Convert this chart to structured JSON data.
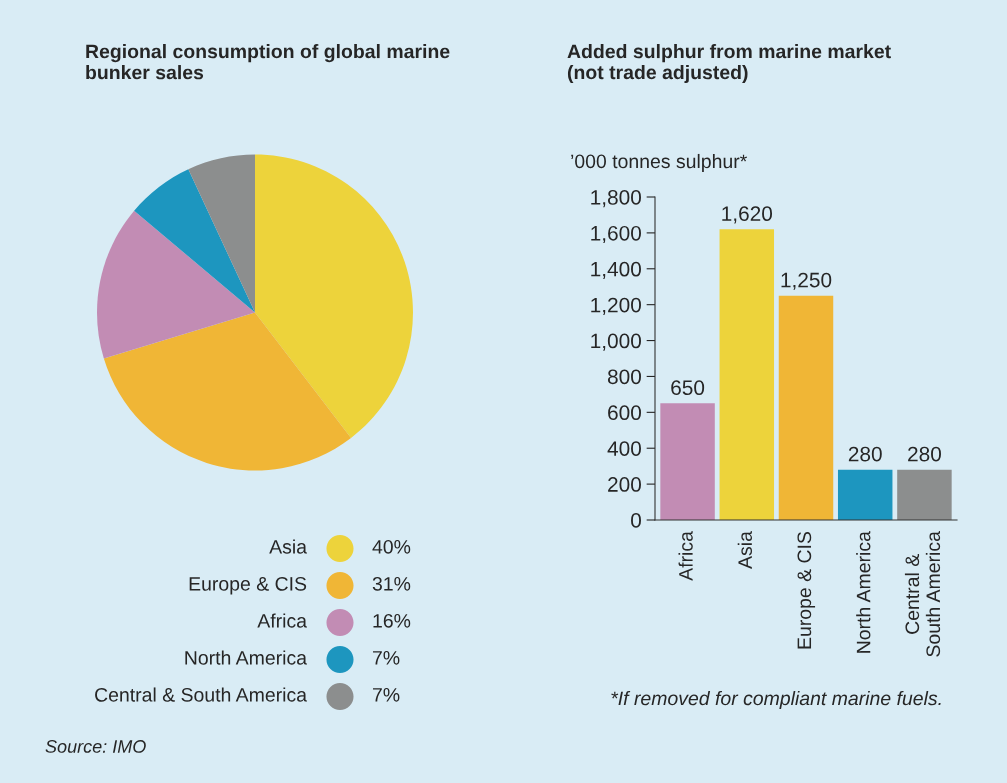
{
  "chart_data": [
    {
      "type": "pie",
      "title": "Regional consumption of global marine\nbunker sales",
      "categories": [
        "Asia",
        "Europe & CIS",
        "Africa",
        "North America",
        "Central & South America"
      ],
      "values": [
        40,
        31,
        16,
        7,
        7
      ],
      "colors": [
        "#edd33b",
        "#f0b636",
        "#c28cb4",
        "#1d96bf",
        "#8c8e8e"
      ],
      "value_labels": [
        "40%",
        "31%",
        "16%",
        "7%",
        "7%"
      ],
      "legend": "bottom",
      "annotations": [
        "Source: IMO"
      ]
    },
    {
      "type": "bar",
      "title": "Added sulphur from marine market\n(not trade adjusted)",
      "ylabel": "’000 tonnes sulphur*",
      "categories": [
        "Africa",
        "Asia",
        "Europe & CIS",
        "North America",
        "Central &\nSouth America"
      ],
      "values": [
        650,
        1620,
        1250,
        280,
        280
      ],
      "colors": [
        "#c28cb4",
        "#edd33b",
        "#f0b636",
        "#1d96bf",
        "#8c8e8e"
      ],
      "value_labels": [
        "650",
        "1,620",
        "1,250",
        "280",
        "280"
      ],
      "ylim": [
        0,
        1800
      ],
      "yticks": [
        0,
        200,
        400,
        600,
        800,
        {
          "value": 1000,
          "label": "1,000"
        },
        {
          "value": 1200,
          "label": "1,200"
        },
        {
          "value": 1400,
          "label": "1,400"
        },
        {
          "value": 1600,
          "label": "1,600"
        },
        {
          "value": 1800,
          "label": "1,800"
        }
      ],
      "grid": false,
      "annotations": [
        "*If removed for compliant marine fuels."
      ]
    }
  ]
}
